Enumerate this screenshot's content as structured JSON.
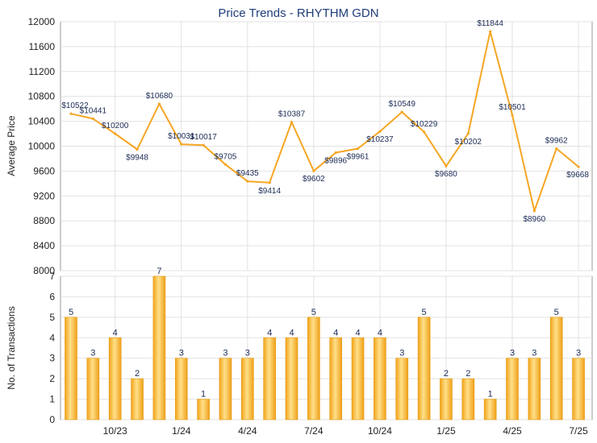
{
  "chart_data": [
    {
      "type": "line",
      "title": "Price Trends - RHYTHM GDN",
      "ylabel": "Average Price",
      "ylim": [
        8000,
        12000
      ],
      "yticks": [
        8000,
        8400,
        8800,
        9200,
        9600,
        10000,
        10400,
        10800,
        11200,
        11600,
        12000
      ],
      "grid": true,
      "color": "#f5a623",
      "values": [
        10522,
        10441,
        10200,
        9948,
        10680,
        10031,
        10017,
        9705,
        9435,
        9414,
        10387,
        9602,
        9896,
        9961,
        10237,
        10549,
        10229,
        9680,
        10202,
        11844,
        10501,
        8960,
        9962,
        9668
      ],
      "labels": [
        "$10522",
        "$10441",
        "$10200",
        "$9948",
        "$10680",
        "$10031",
        "$10017",
        "$9705",
        "$9435",
        "$9414",
        "$10387",
        "$9602",
        "$9896",
        "$9961",
        "$10237",
        "$10549",
        "$10229",
        "$9680",
        "$10202",
        "$11844",
        "$10501",
        "$8960",
        "$9962",
        "$9668"
      ]
    },
    {
      "type": "bar",
      "ylabel": "No. of Transactions",
      "ylim": [
        0,
        7
      ],
      "yticks": [
        0,
        1,
        2,
        3,
        4,
        5,
        6,
        7
      ],
      "grid": true,
      "color": "#f5a623",
      "values": [
        5,
        3,
        4,
        2,
        7,
        3,
        1,
        3,
        3,
        4,
        4,
        5,
        4,
        4,
        4,
        3,
        5,
        2,
        2,
        1,
        3,
        3,
        5,
        3
      ],
      "x_tick_labels": [
        {
          "label": "10/23",
          "index": 2
        },
        {
          "label": "1/24",
          "index": 5
        },
        {
          "label": "4/24",
          "index": 8
        },
        {
          "label": "7/24",
          "index": 11
        },
        {
          "label": "10/24",
          "index": 14
        },
        {
          "label": "1/25",
          "index": 17
        },
        {
          "label": "4/25",
          "index": 20
        },
        {
          "label": "7/25",
          "index": 23
        }
      ]
    }
  ]
}
